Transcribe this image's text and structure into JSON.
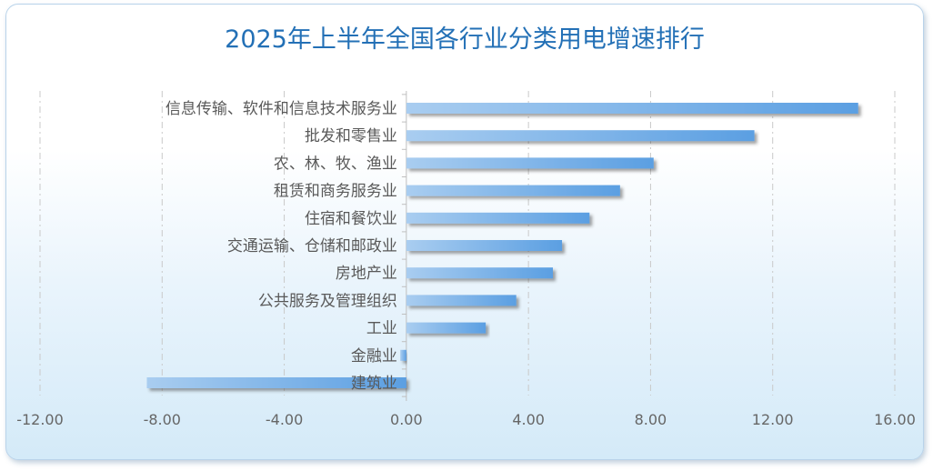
{
  "chart_data": {
    "type": "bar",
    "orientation": "horizontal",
    "title": "2025年上半年全国各行业分类用电增速排行",
    "categories": [
      "信息传输、软件和信息技术服务业",
      "批发和零售业",
      "农、林、牧、渔业",
      "租赁和商务服务业",
      "住宿和餐饮业",
      "交通运输、仓储和邮政业",
      "房地产业",
      "公共服务及管理组织",
      "工业",
      "金融业",
      "建筑业"
    ],
    "values": [
      14.8,
      11.4,
      8.1,
      7.0,
      6.0,
      5.1,
      4.8,
      3.6,
      2.6,
      -0.2,
      -8.5
    ],
    "xlim": [
      -12,
      16
    ],
    "xticks": [
      "-12.00",
      "-8.00",
      "-4.00",
      "0.00",
      "4.00",
      "8.00",
      "12.00",
      "16.00"
    ],
    "xtick_values": [
      -12,
      -8,
      -4,
      0,
      4,
      8,
      12,
      16
    ],
    "grid": "vertical dashed",
    "colors": {
      "bar_start": "#a9cdf0",
      "bar_end": "#5b9fe2",
      "title": "#2370b6",
      "label": "#595959"
    }
  }
}
